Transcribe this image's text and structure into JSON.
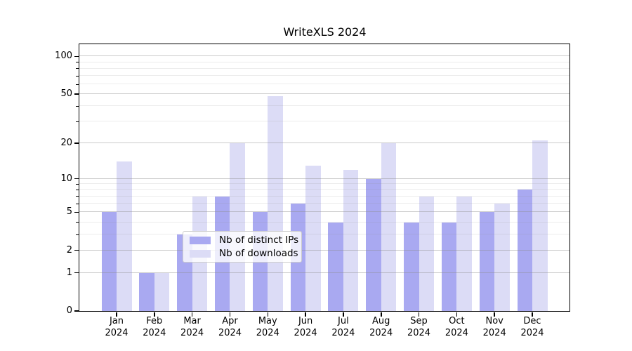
{
  "chart_data": {
    "type": "bar",
    "title": "WriteXLS 2024",
    "categories": [
      "Jan",
      "Feb",
      "Mar",
      "Apr",
      "May",
      "Jun",
      "Jul",
      "Aug",
      "Sep",
      "Oct",
      "Nov",
      "Dec"
    ],
    "category_year": "2024",
    "series": [
      {
        "key": "distinct-ips",
        "name": "Nb of distinct IPs",
        "color": "#a9a9f1",
        "values": [
          5,
          1,
          3,
          7,
          5,
          6,
          4,
          10,
          4,
          4,
          5,
          8
        ]
      },
      {
        "key": "downloads",
        "name": "Nb of downloads",
        "color": "#dcdcf6",
        "values": [
          14,
          1,
          7,
          20,
          48,
          13,
          12,
          20,
          7,
          7,
          6,
          21
        ]
      }
    ],
    "yscale": "log10(x+1)",
    "ylim": [
      0,
      125
    ],
    "yticks": [
      0,
      1,
      2,
      5,
      10,
      20,
      50,
      100
    ],
    "yticks_minor": [
      3,
      4,
      6,
      7,
      8,
      9,
      30,
      40,
      60,
      70,
      80,
      90
    ],
    "grid": true,
    "legend_position": "lower center"
  },
  "colors": {
    "grid_major": "rgba(140,140,140,0.45)",
    "grid_minor": "rgba(140,140,140,0.17)",
    "spine": "#000000",
    "text": "#000000",
    "legend_border": "#cccccc"
  }
}
